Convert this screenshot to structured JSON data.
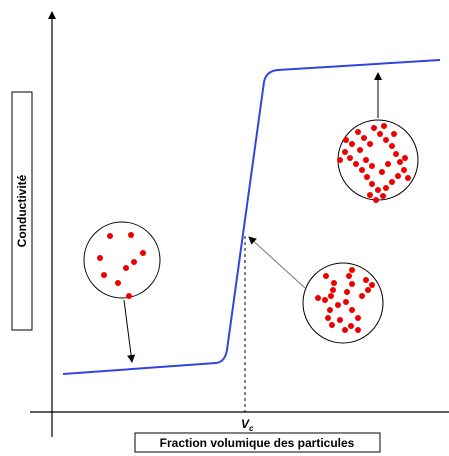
{
  "y_axis_label": "Conductivité",
  "critical_label": {
    "main": "V",
    "sub": "c"
  },
  "x_axis_label": "Fraction volumique des particules"
}
